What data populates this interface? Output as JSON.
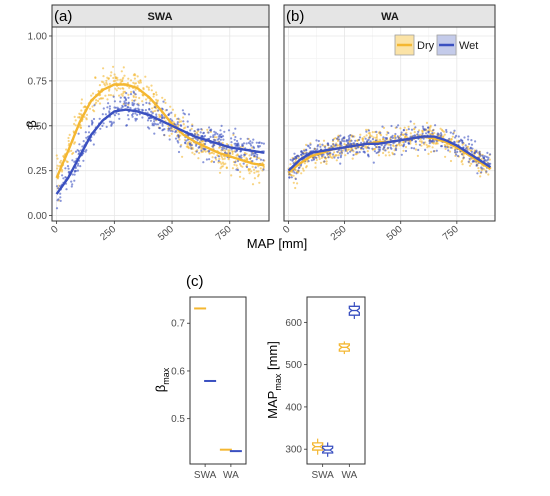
{
  "figure": {
    "x_axis_label": "MAP [mm]",
    "y_axis_label_top": "β"
  },
  "chart_data": [
    {
      "id": "a",
      "type": "scatter",
      "panel_tag": "(a)",
      "strip_title": "SWA",
      "xlim": [
        -20,
        920
      ],
      "ylim": [
        -0.03,
        1.05
      ],
      "x_ticks": [
        0,
        250,
        500,
        750
      ],
      "y_ticks": [
        0.0,
        0.25,
        0.5,
        0.75,
        1.0
      ],
      "x_tick_labels": [
        "0",
        "250",
        "500",
        "750"
      ],
      "y_tick_labels": [
        "0.00",
        "0.25",
        "0.50",
        "0.75",
        "1.00"
      ],
      "grid": true,
      "series": [
        {
          "key": "dry",
          "color": "#f4b731",
          "x": [
            0,
            50,
            100,
            150,
            200,
            250,
            300,
            350,
            400,
            450,
            500,
            550,
            600,
            650,
            700,
            750,
            800,
            850,
            900
          ],
          "y": [
            0.21,
            0.36,
            0.52,
            0.64,
            0.7,
            0.73,
            0.73,
            0.71,
            0.66,
            0.59,
            0.51,
            0.45,
            0.41,
            0.38,
            0.35,
            0.33,
            0.31,
            0.29,
            0.28
          ]
        },
        {
          "key": "wet",
          "color": "#3a50c0",
          "x": [
            0,
            50,
            100,
            150,
            200,
            250,
            300,
            350,
            400,
            450,
            500,
            550,
            600,
            650,
            700,
            750,
            800,
            850,
            900
          ],
          "y": [
            0.12,
            0.21,
            0.33,
            0.45,
            0.53,
            0.58,
            0.59,
            0.58,
            0.56,
            0.53,
            0.5,
            0.47,
            0.44,
            0.42,
            0.4,
            0.38,
            0.37,
            0.36,
            0.35
          ]
        }
      ]
    },
    {
      "id": "b",
      "type": "scatter",
      "panel_tag": "(b)",
      "strip_title": "WA",
      "xlim": [
        -20,
        920
      ],
      "ylim": [
        -0.03,
        1.05
      ],
      "x_ticks": [
        0,
        250,
        500,
        750
      ],
      "y_ticks": [
        0.0,
        0.25,
        0.5,
        0.75,
        1.0
      ],
      "x_tick_labels": [
        "0",
        "250",
        "500",
        "750"
      ],
      "y_tick_labels": [],
      "grid": true,
      "legend": {
        "position": "top-right",
        "entries": [
          "Dry",
          "Wet"
        ]
      },
      "series": [
        {
          "key": "dry",
          "color": "#f4b731",
          "x": [
            0,
            50,
            100,
            150,
            200,
            250,
            300,
            350,
            400,
            450,
            500,
            550,
            600,
            650,
            700,
            750,
            800,
            850,
            900
          ],
          "y": [
            0.24,
            0.29,
            0.33,
            0.35,
            0.37,
            0.38,
            0.39,
            0.4,
            0.41,
            0.41,
            0.42,
            0.43,
            0.44,
            0.43,
            0.41,
            0.38,
            0.34,
            0.3,
            0.26
          ]
        },
        {
          "key": "wet",
          "color": "#3a50c0",
          "x": [
            0,
            50,
            100,
            150,
            200,
            250,
            300,
            350,
            400,
            450,
            500,
            550,
            600,
            650,
            700,
            750,
            800,
            850,
            900
          ],
          "y": [
            0.25,
            0.31,
            0.35,
            0.36,
            0.37,
            0.38,
            0.39,
            0.4,
            0.4,
            0.41,
            0.42,
            0.43,
            0.44,
            0.44,
            0.42,
            0.39,
            0.35,
            0.31,
            0.27
          ]
        }
      ]
    },
    {
      "id": "c1",
      "type": "box",
      "panel_tag": "(c)",
      "y_label_base": "β",
      "y_label_sub": "max",
      "categories": [
        "SWA",
        "WA"
      ],
      "ylim": [
        0.405,
        0.755
      ],
      "y_ticks": [
        0.5,
        0.6,
        0.7
      ],
      "y_tick_labels": [
        "0.5",
        "0.6",
        "0.7"
      ],
      "series": [
        {
          "key": "dry",
          "color": "#f4b731",
          "values": [
            0.731,
            0.435
          ]
        },
        {
          "key": "wet",
          "color": "#3a50c0",
          "values": [
            0.579,
            0.432
          ]
        }
      ]
    },
    {
      "id": "c2",
      "type": "box",
      "y_label_base": "MAP",
      "y_label_sub": "max",
      "y_label_unit": " [mm]",
      "categories": [
        "SWA",
        "WA"
      ],
      "ylim": [
        265,
        660
      ],
      "y_ticks": [
        300,
        400,
        500,
        600
      ],
      "y_tick_labels": [
        "300",
        "400",
        "500",
        "600"
      ],
      "series": [
        {
          "key": "dry",
          "color": "#f4b731",
          "boxes": [
            {
              "q1": 298,
              "median": 306,
              "q3": 315,
              "whislo": 287,
              "whishi": 325
            },
            {
              "q1": 532,
              "median": 541,
              "q3": 549,
              "whislo": 525,
              "whishi": 555
            }
          ]
        },
        {
          "key": "wet",
          "color": "#3a50c0",
          "boxes": [
            {
              "q1": 291,
              "median": 298,
              "q3": 307,
              "whislo": 282,
              "whishi": 316
            },
            {
              "q1": 617,
              "median": 628,
              "q3": 638,
              "whislo": 608,
              "whishi": 648
            }
          ]
        }
      ]
    }
  ]
}
